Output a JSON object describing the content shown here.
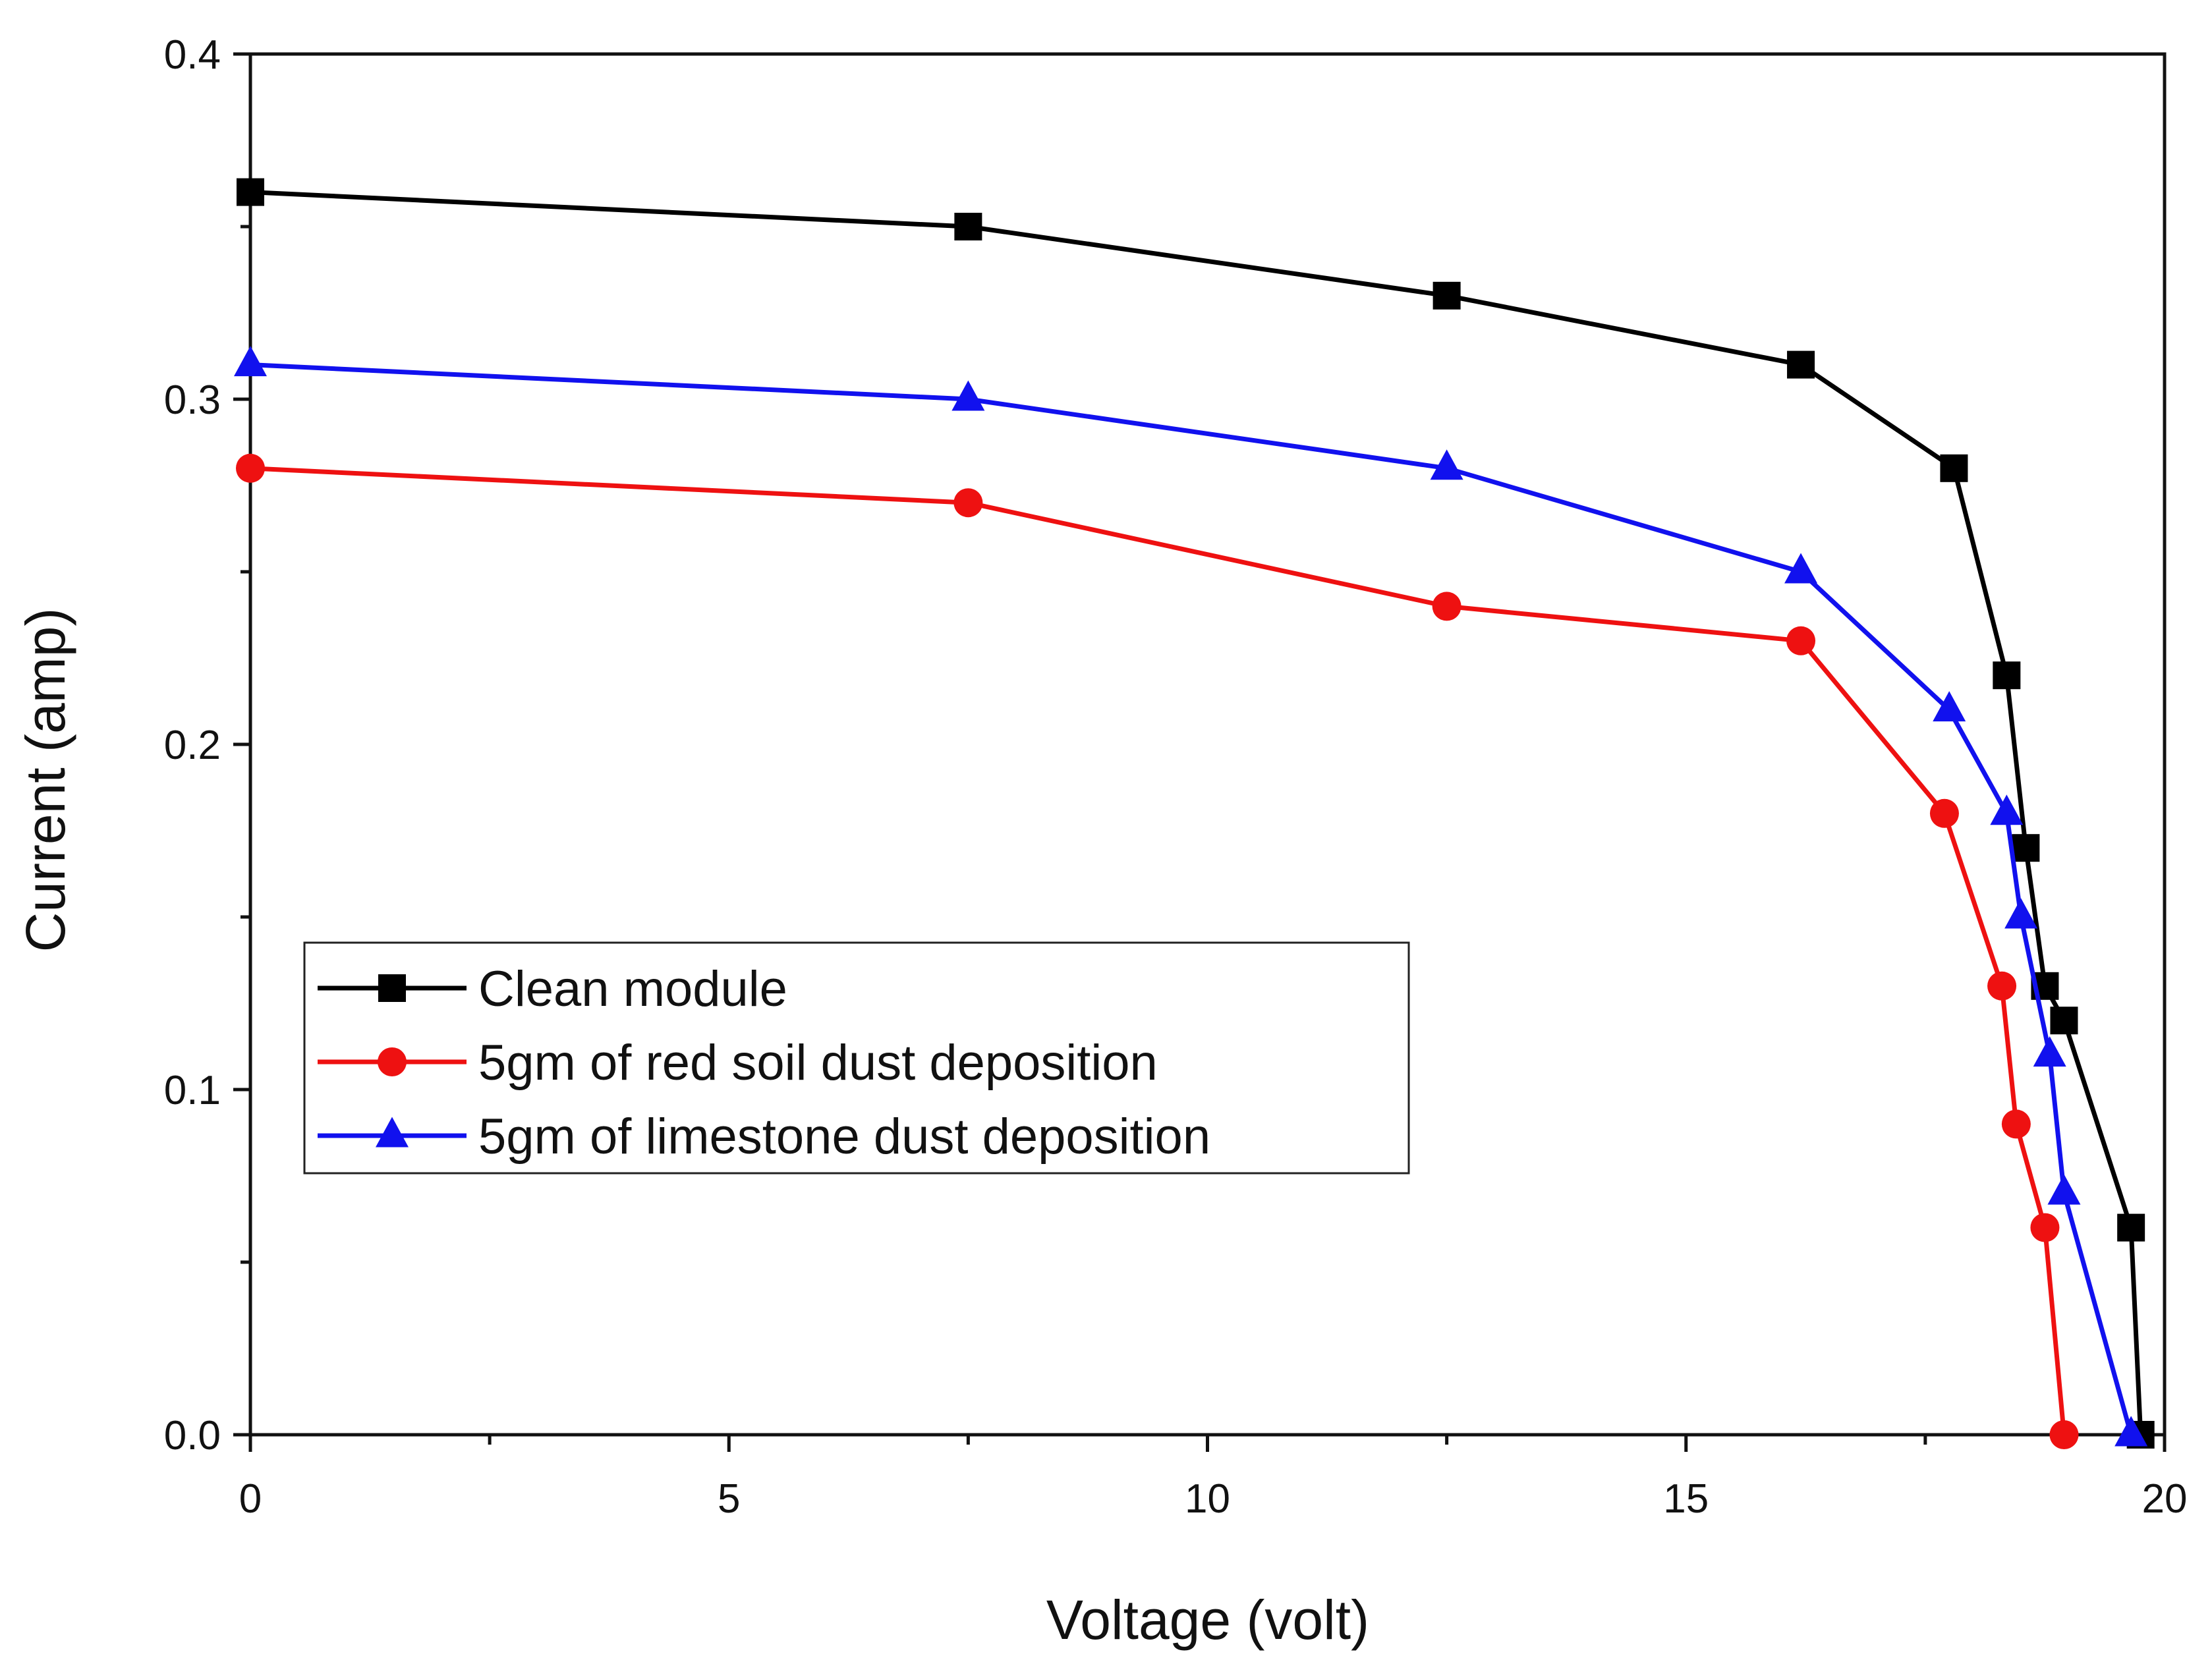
{
  "chart_data": {
    "type": "line",
    "title": "",
    "xlabel": "Voltage (volt)",
    "ylabel": "Current (amp)",
    "xlim": [
      0,
      20
    ],
    "ylim": [
      0.0,
      0.4
    ],
    "xticks": [
      0,
      5,
      10,
      15,
      20
    ],
    "xtick_labels": [
      "0",
      "5",
      "10",
      "15",
      "20"
    ],
    "yticks": [
      0.0,
      0.1,
      0.2,
      0.3,
      0.4
    ],
    "ytick_labels": [
      "0.0",
      "0.1",
      "0.2",
      "0.3",
      "0.4"
    ],
    "grid": false,
    "legend_position": "lower-left",
    "series": [
      {
        "name": "Clean module",
        "color": "#000000",
        "marker": "square",
        "x": [
          0,
          7.5,
          12.5,
          16.2,
          17.8,
          18.35,
          18.55,
          18.75,
          18.95,
          19.65,
          19.75
        ],
        "y": [
          0.36,
          0.35,
          0.33,
          0.31,
          0.28,
          0.22,
          0.17,
          0.13,
          0.12,
          0.06,
          0.0
        ]
      },
      {
        "name": "5gm of red soil dust deposition",
        "color": "#ee1111",
        "marker": "circle",
        "x": [
          0,
          7.5,
          12.5,
          16.2,
          17.7,
          18.3,
          18.45,
          18.75,
          18.95
        ],
        "y": [
          0.28,
          0.27,
          0.24,
          0.23,
          0.18,
          0.13,
          0.09,
          0.06,
          0.0
        ]
      },
      {
        "name": "5gm of limestone dust deposition",
        "color": "#1111ee",
        "marker": "triangle",
        "x": [
          0,
          7.5,
          12.5,
          16.2,
          17.75,
          18.35,
          18.5,
          18.8,
          18.95,
          19.65
        ],
        "y": [
          0.31,
          0.3,
          0.28,
          0.25,
          0.21,
          0.18,
          0.15,
          0.11,
          0.07,
          0.0
        ]
      }
    ]
  }
}
